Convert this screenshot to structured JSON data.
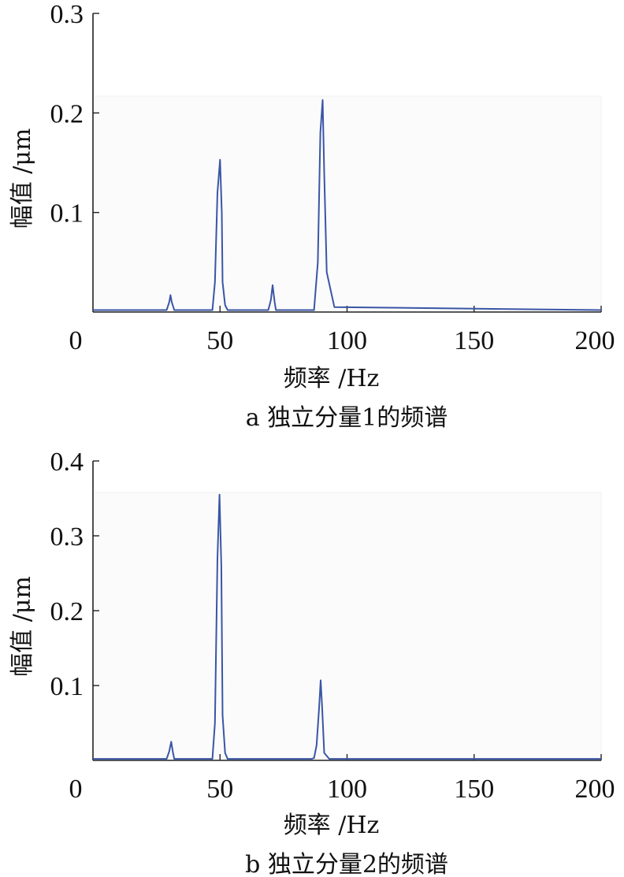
{
  "chart_data": [
    {
      "type": "line",
      "caption": "a 独立分量1的频谱",
      "xlabel": "频率 /Hz",
      "ylabel": "幅值 /μm",
      "xlim": [
        0,
        200
      ],
      "ylim": [
        0,
        0.3
      ],
      "xticks": [
        "0",
        "50",
        "100",
        "150",
        "200"
      ],
      "yticks": [
        "0.1",
        "0.2",
        "0.3"
      ],
      "series": [
        {
          "color": "#3a56a5",
          "x": [
            0,
            29,
            30,
            30.5,
            31,
            32,
            47,
            48,
            49,
            50,
            50.7,
            51,
            52,
            53,
            69,
            70,
            70.7,
            71.5,
            72,
            87,
            88.5,
            89.5,
            90.4,
            91,
            92,
            95,
            200
          ],
          "y": [
            0.002,
            0.002,
            0.01,
            0.017,
            0.01,
            0.002,
            0.002,
            0.03,
            0.12,
            0.153,
            0.1,
            0.03,
            0.007,
            0.002,
            0.002,
            0.012,
            0.027,
            0.01,
            0.002,
            0.002,
            0.05,
            0.18,
            0.213,
            0.14,
            0.04,
            0.005,
            0.002
          ]
        }
      ]
    },
    {
      "type": "line",
      "caption": "b 独立分量2的频谱",
      "xlabel": "频率 /Hz",
      "ylabel": "幅值 /μm",
      "xlim": [
        0,
        200
      ],
      "ylim": [
        0,
        0.4
      ],
      "xticks": [
        "0",
        "50",
        "100",
        "150",
        "200"
      ],
      "yticks": [
        "0.1",
        "0.2",
        "0.3",
        "0.4"
      ],
      "series": [
        {
          "color": "#3a56a5",
          "x": [
            0,
            29,
            30,
            30.8,
            31.5,
            32,
            47,
            48,
            49,
            49.8,
            50.5,
            51,
            52,
            53,
            86,
            87,
            88,
            89,
            89.6,
            90.2,
            91,
            93,
            200
          ],
          "y": [
            0.002,
            0.002,
            0.012,
            0.025,
            0.01,
            0.002,
            0.002,
            0.05,
            0.27,
            0.355,
            0.26,
            0.06,
            0.01,
            0.002,
            0.002,
            0.003,
            0.02,
            0.07,
            0.107,
            0.07,
            0.01,
            0.002,
            0.002
          ]
        }
      ]
    }
  ]
}
